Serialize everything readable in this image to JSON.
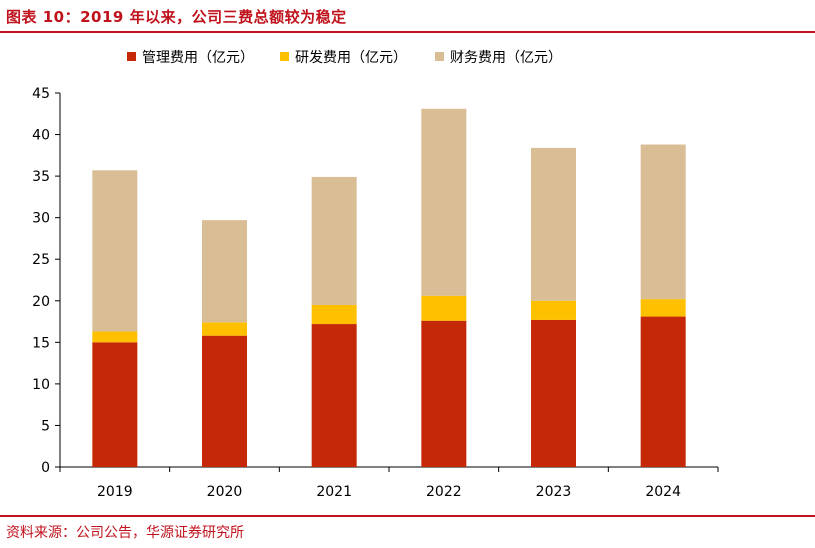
{
  "header": {
    "title": "图表 10：2019 年以来，公司三费总额较为稳定"
  },
  "footer": {
    "source": "资料来源：公司公告，华源证券研究所"
  },
  "colors": {
    "accent": "#c0121c"
  },
  "chart_data": {
    "type": "bar",
    "stacked": true,
    "categories": [
      "2019",
      "2020",
      "2021",
      "2022",
      "2023",
      "2024"
    ],
    "series": [
      {
        "name": "管理费用（亿元）",
        "color": "#c42806",
        "values": [
          15.0,
          15.8,
          17.2,
          17.6,
          17.7,
          18.1
        ]
      },
      {
        "name": "研发费用（亿元）",
        "color": "#ffc000",
        "values": [
          1.3,
          1.6,
          2.3,
          3.0,
          2.3,
          2.1
        ]
      },
      {
        "name": "财务费用（亿元）",
        "color": "#d8bd95",
        "values": [
          19.4,
          12.3,
          15.4,
          22.5,
          18.4,
          18.6
        ]
      }
    ],
    "ylim": [
      0,
      45
    ],
    "yticks": [
      0,
      5,
      10,
      15,
      20,
      25,
      30,
      35,
      40,
      45
    ],
    "grid": false,
    "legend": "top-center"
  }
}
